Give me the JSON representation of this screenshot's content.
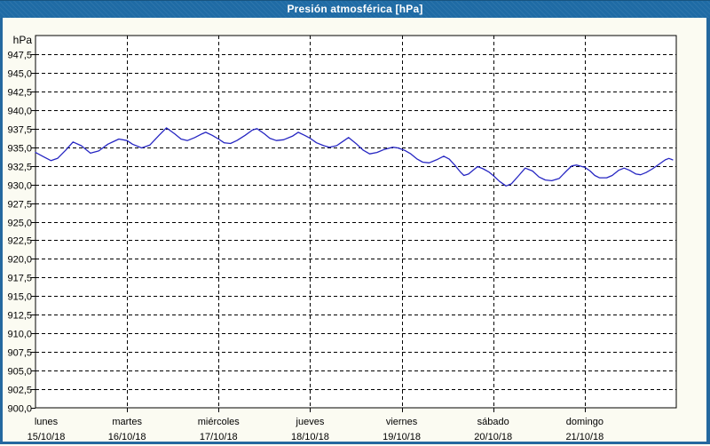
{
  "window": {
    "title": "Presión atmosférica [hPa]"
  },
  "colors": {
    "titlebar": "#1f6ba5",
    "window_border": "#24689f",
    "page_background": "#fbfbf2",
    "plot_background": "#ffffff",
    "grid": "#000000",
    "line": "#2626c2"
  },
  "chart_data": {
    "type": "line",
    "title": "Presión atmosférica [hPa]",
    "ylabel": "hPa",
    "ylim": [
      900,
      950
    ],
    "ytick_step": 2.5,
    "grid": "dashed",
    "legend": "none",
    "ytick_labels": [
      "947,5",
      "945,0",
      "942,5",
      "940,0",
      "937,5",
      "935,0",
      "932,5",
      "930,0",
      "927,5",
      "925,0",
      "922,5",
      "920,0",
      "917,5",
      "915,0",
      "912,5",
      "910,0",
      "907,5",
      "905,0",
      "902,5",
      "900,0"
    ],
    "ytick_values": [
      947.5,
      945.0,
      942.5,
      940.0,
      937.5,
      935.0,
      932.5,
      930.0,
      927.5,
      925.0,
      922.5,
      920.0,
      917.5,
      915.0,
      912.5,
      910.0,
      907.5,
      905.0,
      902.5,
      900.0
    ],
    "days": [
      {
        "name": "lunes",
        "date": "15/10/18"
      },
      {
        "name": "martes",
        "date": "16/10/18"
      },
      {
        "name": "miércoles",
        "date": "17/10/18"
      },
      {
        "name": "jueves",
        "date": "18/10/18"
      },
      {
        "name": "viernes",
        "date": "19/10/18"
      },
      {
        "name": "sábado",
        "date": "20/10/18"
      },
      {
        "name": "domingo",
        "date": "21/10/18"
      }
    ],
    "series": [
      {
        "name": "Presión atmosférica",
        "color": "#2626c2",
        "x_unit": "days_from_start",
        "y_unit": "hPa",
        "points": [
          [
            0.0,
            934.3
          ],
          [
            0.09,
            933.7
          ],
          [
            0.17,
            933.2
          ],
          [
            0.24,
            933.5
          ],
          [
            0.33,
            934.6
          ],
          [
            0.41,
            935.7
          ],
          [
            0.5,
            935.2
          ],
          [
            0.6,
            934.2
          ],
          [
            0.69,
            934.5
          ],
          [
            0.79,
            935.4
          ],
          [
            0.91,
            936.1
          ],
          [
            1.0,
            935.9
          ],
          [
            1.06,
            935.4
          ],
          [
            1.16,
            934.9
          ],
          [
            1.25,
            935.3
          ],
          [
            1.35,
            936.6
          ],
          [
            1.43,
            937.6
          ],
          [
            1.52,
            936.8
          ],
          [
            1.59,
            936.1
          ],
          [
            1.66,
            935.9
          ],
          [
            1.74,
            936.3
          ],
          [
            1.82,
            936.8
          ],
          [
            1.86,
            937.0
          ],
          [
            1.93,
            936.6
          ],
          [
            2.0,
            936.1
          ],
          [
            2.06,
            935.6
          ],
          [
            2.13,
            935.5
          ],
          [
            2.2,
            935.9
          ],
          [
            2.29,
            936.6
          ],
          [
            2.37,
            937.3
          ],
          [
            2.42,
            937.5
          ],
          [
            2.5,
            936.8
          ],
          [
            2.56,
            936.2
          ],
          [
            2.63,
            935.9
          ],
          [
            2.71,
            936.0
          ],
          [
            2.81,
            936.5
          ],
          [
            2.87,
            937.0
          ],
          [
            2.94,
            936.6
          ],
          [
            3.0,
            936.2
          ],
          [
            3.07,
            935.6
          ],
          [
            3.15,
            935.2
          ],
          [
            3.21,
            935.0
          ],
          [
            3.29,
            935.2
          ],
          [
            3.42,
            936.3
          ],
          [
            3.51,
            935.4
          ],
          [
            3.58,
            934.6
          ],
          [
            3.65,
            934.1
          ],
          [
            3.73,
            934.3
          ],
          [
            3.81,
            934.7
          ],
          [
            3.9,
            935.0
          ],
          [
            3.96,
            934.9
          ],
          [
            4.03,
            934.6
          ],
          [
            4.1,
            934.1
          ],
          [
            4.17,
            933.4
          ],
          [
            4.23,
            933.0
          ],
          [
            4.3,
            932.9
          ],
          [
            4.38,
            933.3
          ],
          [
            4.46,
            933.8
          ],
          [
            4.52,
            933.4
          ],
          [
            4.58,
            932.6
          ],
          [
            4.64,
            931.7
          ],
          [
            4.68,
            931.2
          ],
          [
            4.73,
            931.4
          ],
          [
            4.79,
            932.0
          ],
          [
            4.83,
            932.4
          ],
          [
            4.89,
            932.1
          ],
          [
            4.95,
            931.7
          ],
          [
            5.0,
            931.2
          ],
          [
            5.07,
            930.4
          ],
          [
            5.14,
            929.8
          ],
          [
            5.2,
            930.1
          ],
          [
            5.28,
            931.2
          ],
          [
            5.35,
            932.2
          ],
          [
            5.43,
            931.8
          ],
          [
            5.5,
            931.0
          ],
          [
            5.57,
            930.6
          ],
          [
            5.64,
            930.5
          ],
          [
            5.72,
            930.8
          ],
          [
            5.8,
            931.8
          ],
          [
            5.86,
            932.5
          ],
          [
            5.91,
            932.6
          ],
          [
            5.97,
            932.4
          ],
          [
            6.0,
            932.3
          ],
          [
            6.06,
            931.8
          ],
          [
            6.11,
            931.2
          ],
          [
            6.16,
            930.9
          ],
          [
            6.24,
            930.9
          ],
          [
            6.3,
            931.2
          ],
          [
            6.37,
            931.9
          ],
          [
            6.43,
            932.2
          ],
          [
            6.49,
            931.9
          ],
          [
            6.56,
            931.4
          ],
          [
            6.61,
            931.3
          ],
          [
            6.67,
            931.6
          ],
          [
            6.74,
            932.1
          ],
          [
            6.81,
            932.7
          ],
          [
            6.88,
            933.3
          ],
          [
            6.92,
            933.5
          ],
          [
            6.96,
            933.3
          ]
        ]
      }
    ]
  }
}
